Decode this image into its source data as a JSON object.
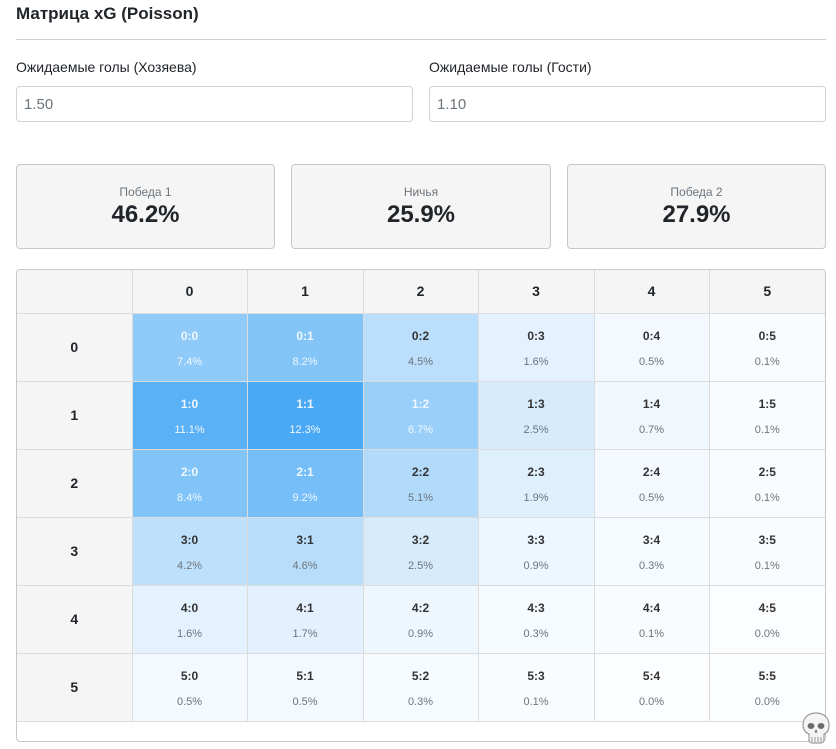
{
  "header": {
    "title": "Матрица xG (Poisson)"
  },
  "inputs": {
    "home": {
      "label": "Ожидаемые голы (Хозяева)",
      "value": "1.50"
    },
    "away": {
      "label": "Ожидаемые голы (Гости)",
      "value": "1.10"
    }
  },
  "summary": [
    {
      "label": "Победа 1",
      "value": "46.2%"
    },
    {
      "label": "Ничья",
      "value": "25.9%"
    },
    {
      "label": "Победа 2",
      "value": "27.9%"
    }
  ],
  "colors": {
    "heat_base": "#2196f3",
    "card_bg": "#f5f5f5"
  },
  "icons": {
    "corner": "skull-icon"
  },
  "chart_data": {
    "type": "heatmap",
    "title": "Матрица xG (Poisson)",
    "column_labels": [
      "0",
      "1",
      "2",
      "3",
      "4",
      "5"
    ],
    "row_labels": [
      "0",
      "1",
      "2",
      "3",
      "4",
      "5"
    ],
    "rows": [
      [
        {
          "score": "0:0",
          "prob": "7.4%",
          "value": 7.4
        },
        {
          "score": "0:1",
          "prob": "8.2%",
          "value": 8.2
        },
        {
          "score": "0:2",
          "prob": "4.5%",
          "value": 4.5
        },
        {
          "score": "0:3",
          "prob": "1.6%",
          "value": 1.6
        },
        {
          "score": "0:4",
          "prob": "0.5%",
          "value": 0.5
        },
        {
          "score": "0:5",
          "prob": "0.1%",
          "value": 0.1
        }
      ],
      [
        {
          "score": "1:0",
          "prob": "11.1%",
          "value": 11.1
        },
        {
          "score": "1:1",
          "prob": "12.3%",
          "value": 12.3
        },
        {
          "score": "1:2",
          "prob": "6.7%",
          "value": 6.7
        },
        {
          "score": "1:3",
          "prob": "2.5%",
          "value": 2.5
        },
        {
          "score": "1:4",
          "prob": "0.7%",
          "value": 0.7
        },
        {
          "score": "1:5",
          "prob": "0.1%",
          "value": 0.1
        }
      ],
      [
        {
          "score": "2:0",
          "prob": "8.4%",
          "value": 8.4
        },
        {
          "score": "2:1",
          "prob": "9.2%",
          "value": 9.2
        },
        {
          "score": "2:2",
          "prob": "5.1%",
          "value": 5.1
        },
        {
          "score": "2:3",
          "prob": "1.9%",
          "value": 1.9
        },
        {
          "score": "2:4",
          "prob": "0.5%",
          "value": 0.5
        },
        {
          "score": "2:5",
          "prob": "0.1%",
          "value": 0.1
        }
      ],
      [
        {
          "score": "3:0",
          "prob": "4.2%",
          "value": 4.2
        },
        {
          "score": "3:1",
          "prob": "4.6%",
          "value": 4.6
        },
        {
          "score": "3:2",
          "prob": "2.5%",
          "value": 2.5
        },
        {
          "score": "3:3",
          "prob": "0.9%",
          "value": 0.9
        },
        {
          "score": "3:4",
          "prob": "0.3%",
          "value": 0.3
        },
        {
          "score": "3:5",
          "prob": "0.1%",
          "value": 0.1
        }
      ],
      [
        {
          "score": "4:0",
          "prob": "1.6%",
          "value": 1.6
        },
        {
          "score": "4:1",
          "prob": "1.7%",
          "value": 1.7
        },
        {
          "score": "4:2",
          "prob": "0.9%",
          "value": 0.9
        },
        {
          "score": "4:3",
          "prob": "0.3%",
          "value": 0.3
        },
        {
          "score": "4:4",
          "prob": "0.1%",
          "value": 0.1
        },
        {
          "score": "4:5",
          "prob": "0.0%",
          "value": 0.0
        }
      ],
      [
        {
          "score": "5:0",
          "prob": "0.5%",
          "value": 0.5
        },
        {
          "score": "5:1",
          "prob": "0.5%",
          "value": 0.5
        },
        {
          "score": "5:2",
          "prob": "0.3%",
          "value": 0.3
        },
        {
          "score": "5:3",
          "prob": "0.1%",
          "value": 0.1
        },
        {
          "score": "5:4",
          "prob": "0.0%",
          "value": 0.0
        },
        {
          "score": "5:5",
          "prob": "0.0%",
          "value": 0.0
        }
      ]
    ]
  }
}
